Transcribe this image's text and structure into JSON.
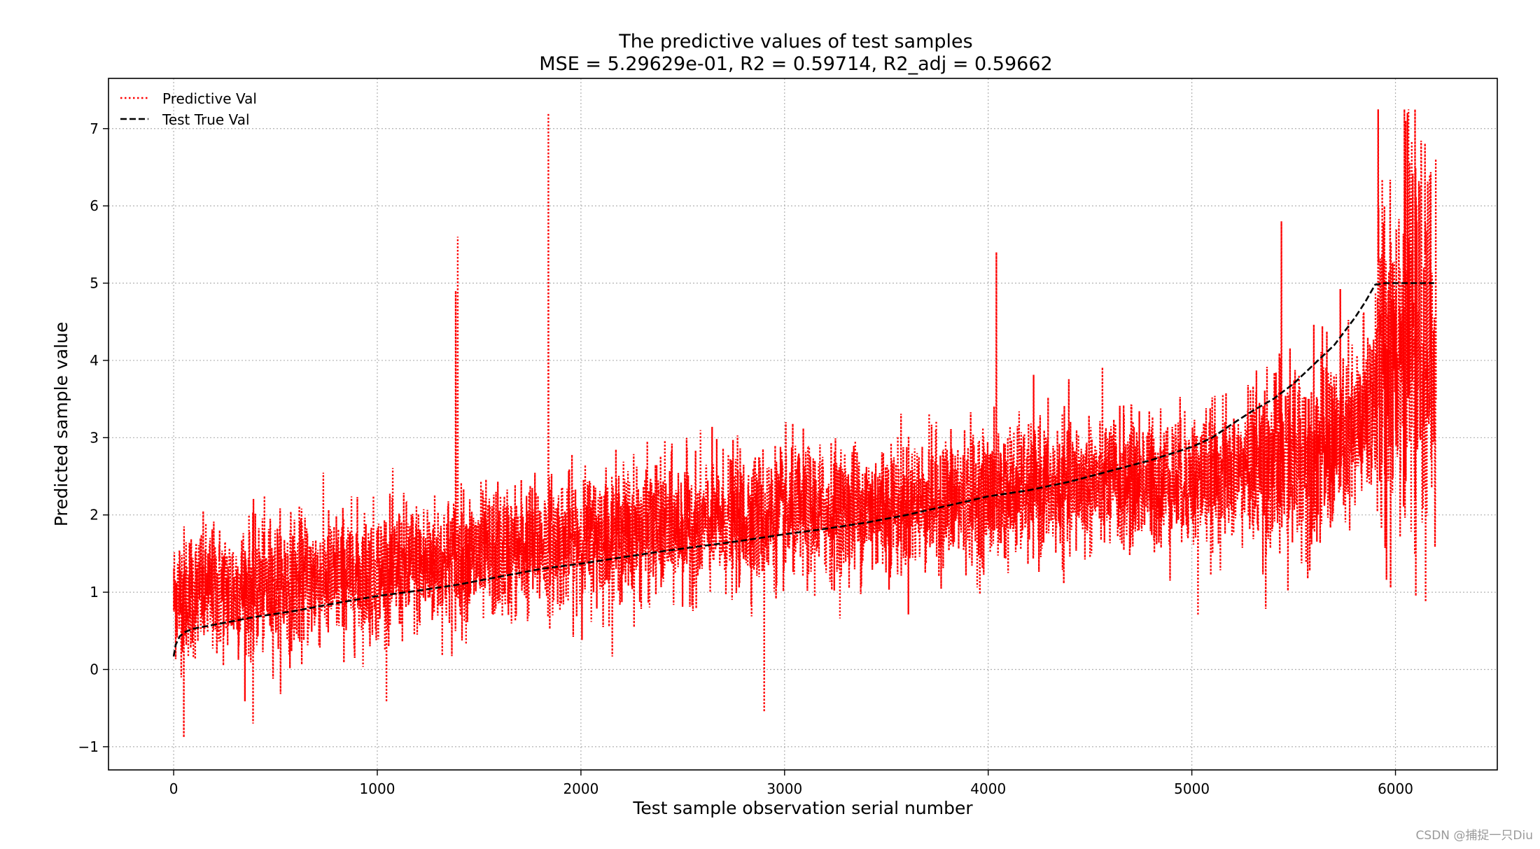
{
  "chart_data": {
    "type": "line",
    "title": "The predictive values of test samples",
    "subtitle": "MSE = 5.29629e-01, R2 = 0.59714, R2_adj = 0.59662",
    "xlabel": "Test sample observation serial number",
    "ylabel": "Predicted sample value",
    "xlim": [
      -320,
      6500
    ],
    "ylim": [
      -1.3,
      7.65
    ],
    "xticks": [
      0,
      1000,
      2000,
      3000,
      4000,
      5000,
      6000
    ],
    "xtick_labels": [
      "0",
      "1000",
      "2000",
      "3000",
      "4000",
      "5000",
      "6000"
    ],
    "yticks": [
      -1,
      0,
      1,
      2,
      3,
      4,
      5,
      6,
      7
    ],
    "ytick_labels": [
      "−1",
      "0",
      "1",
      "2",
      "3",
      "4",
      "5",
      "6",
      "7"
    ],
    "grid": true,
    "legend_position": "top-left",
    "series": [
      {
        "name": "Predictive Val",
        "style": "dotted",
        "color": "#ff0000",
        "n_points": 6200,
        "trend_x": [
          0,
          10,
          60,
          200,
          500,
          1000,
          1500,
          2000,
          2500,
          3000,
          3500,
          4000,
          4500,
          5000,
          5200,
          5500,
          5800,
          5900,
          6000,
          6190
        ],
        "trend_y": [
          0.9,
          1.0,
          1.0,
          1.0,
          1.1,
          1.25,
          1.45,
          1.7,
          1.85,
          2.0,
          2.1,
          2.25,
          2.4,
          2.45,
          2.55,
          2.75,
          3.0,
          3.6,
          4.4,
          4.0
        ],
        "noise_sd": 0.42,
        "spikes": [
          {
            "x": 1385,
            "y": 4.9
          },
          {
            "x": 1395,
            "y": 5.6
          },
          {
            "x": 1840,
            "y": 7.2
          },
          {
            "x": 4040,
            "y": 5.4
          },
          {
            "x": 5440,
            "y": 5.8
          },
          {
            "x": 5915,
            "y": 7.25
          },
          {
            "x": 6050,
            "y": 7.1
          },
          {
            "x": 2900,
            "y": -0.55
          },
          {
            "x": 50,
            "y": -0.88
          },
          {
            "x": 390,
            "y": -0.7
          },
          {
            "x": 5030,
            "y": 0.7
          },
          {
            "x": 6100,
            "y": 0.95
          }
        ]
      },
      {
        "name": "Test True Val",
        "style": "dashed",
        "color": "#000000",
        "x": [
          0,
          10,
          30,
          60,
          100,
          200,
          400,
          600,
          800,
          1000,
          1200,
          1400,
          1600,
          1800,
          2000,
          2200,
          2400,
          2600,
          2800,
          3000,
          3200,
          3400,
          3600,
          3800,
          4000,
          4200,
          4400,
          4600,
          4800,
          5000,
          5100,
          5200,
          5300,
          5400,
          5500,
          5600,
          5700,
          5800,
          5850,
          5900,
          5950,
          6000,
          6100,
          6190
        ],
        "y": [
          0.17,
          0.32,
          0.43,
          0.49,
          0.53,
          0.58,
          0.68,
          0.76,
          0.86,
          0.95,
          1.02,
          1.1,
          1.2,
          1.3,
          1.37,
          1.45,
          1.53,
          1.6,
          1.67,
          1.75,
          1.82,
          1.9,
          2.0,
          2.12,
          2.24,
          2.32,
          2.43,
          2.57,
          2.71,
          2.88,
          3.0,
          3.18,
          3.35,
          3.5,
          3.7,
          3.95,
          4.2,
          4.55,
          4.75,
          4.98,
          5.0,
          5.0,
          5.0,
          5.0
        ]
      }
    ]
  },
  "watermark": "CSDN @捕捉一只Diu"
}
